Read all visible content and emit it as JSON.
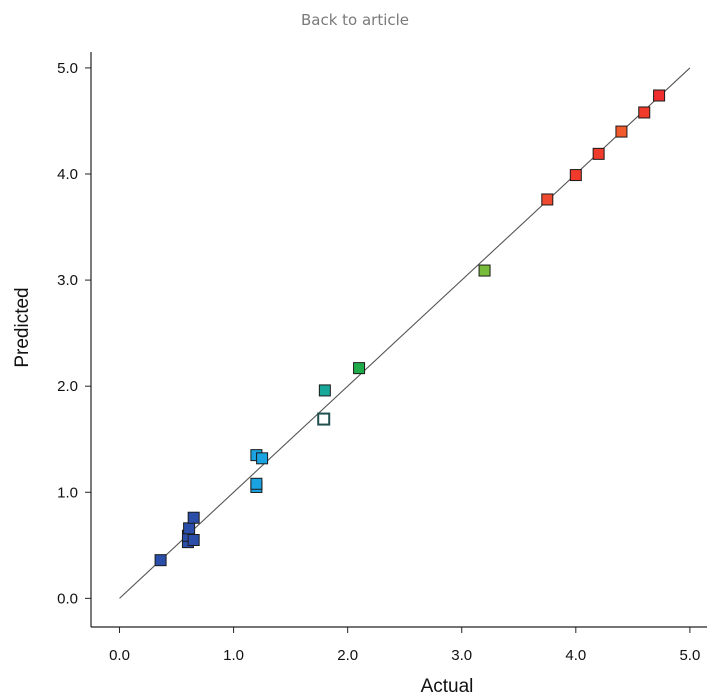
{
  "header": {
    "back_link": "Back to article"
  },
  "chart_data": {
    "type": "scatter",
    "title": "",
    "xlabel": "Actual",
    "ylabel": "Predicted",
    "xlim": [
      -0.25,
      5.15
    ],
    "ylim": [
      -0.27,
      5.15
    ],
    "xticks": [
      "0.0",
      "1.0",
      "2.0",
      "3.0",
      "4.0",
      "5.0"
    ],
    "yticks": [
      "0.0",
      "1.0",
      "2.0",
      "3.0",
      "4.0",
      "5.0"
    ],
    "grid": false,
    "reference_line": {
      "from": [
        0,
        0
      ],
      "to": [
        5,
        5
      ],
      "color": "#555555"
    },
    "points": [
      {
        "x": 0.36,
        "y": 0.36,
        "color": "#2b4fa8"
      },
      {
        "x": 0.6,
        "y": 0.53,
        "color": "#2b4fa8"
      },
      {
        "x": 0.6,
        "y": 0.59,
        "color": "#2b4fa8"
      },
      {
        "x": 0.61,
        "y": 0.66,
        "color": "#2b4fa8"
      },
      {
        "x": 0.65,
        "y": 0.55,
        "color": "#2b4fa8"
      },
      {
        "x": 0.65,
        "y": 0.76,
        "color": "#2b4fa8"
      },
      {
        "x": 1.2,
        "y": 1.05,
        "color": "#1aa3e0"
      },
      {
        "x": 1.2,
        "y": 1.08,
        "color": "#1aa3e0"
      },
      {
        "x": 1.2,
        "y": 1.35,
        "color": "#1aa3e0"
      },
      {
        "x": 1.25,
        "y": 1.32,
        "color": "#1aa3e0"
      },
      {
        "x": 1.79,
        "y": 1.69,
        "color": "#ffffff",
        "stroke": "#1f4f4f",
        "hollow": true
      },
      {
        "x": 1.8,
        "y": 1.96,
        "color": "#17a89a"
      },
      {
        "x": 2.1,
        "y": 2.17,
        "color": "#1fab4a"
      },
      {
        "x": 3.2,
        "y": 3.09,
        "color": "#78bc3c"
      },
      {
        "x": 3.75,
        "y": 3.76,
        "color": "#ef4a30"
      },
      {
        "x": 4.0,
        "y": 3.99,
        "color": "#ef3a2c"
      },
      {
        "x": 4.2,
        "y": 4.19,
        "color": "#ef3a2c"
      },
      {
        "x": 4.4,
        "y": 4.4,
        "color": "#f05a2c"
      },
      {
        "x": 4.6,
        "y": 4.58,
        "color": "#ef3a2c"
      },
      {
        "x": 4.73,
        "y": 4.74,
        "color": "#ef2f2f"
      }
    ]
  }
}
